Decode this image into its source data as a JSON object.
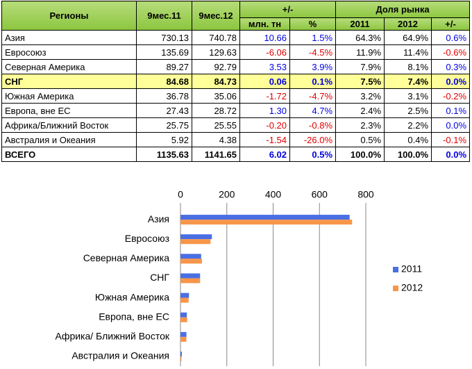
{
  "table": {
    "header_top": [
      "Регионы",
      "9мес.11",
      "9мес.12",
      "+/-",
      "Доля рынка"
    ],
    "header_sub": [
      "млн. тн",
      "%",
      "2011",
      "2012",
      "+/-"
    ],
    "rows": [
      [
        "Азия",
        "730.13",
        "740.78",
        "10.66",
        "1.5%",
        "64.3%",
        "64.9%",
        "0.6%"
      ],
      [
        "Евросоюз",
        "135.69",
        "129.63",
        "-6.06",
        "-4.5%",
        "11.9%",
        "11.4%",
        "-0.6%"
      ],
      [
        "Северная Америка",
        "89.27",
        "92.79",
        "3.53",
        "3.9%",
        "7.9%",
        "8.1%",
        "0.3%"
      ],
      [
        "СНГ",
        "84.68",
        "84.73",
        "0.06",
        "0.1%",
        "7.5%",
        "7.4%",
        "0.0%"
      ],
      [
        "Южная Америка",
        "36.78",
        "35.06",
        "-1.72",
        "-4.7%",
        "3.2%",
        "3.1%",
        "-0.2%"
      ],
      [
        "Европа, вне ЕС",
        "27.43",
        "28.72",
        "1.30",
        "4.7%",
        "2.4%",
        "2.5%",
        "0.1%"
      ],
      [
        "Африка/Ближний Восток",
        "25.75",
        "25.55",
        "-0.20",
        "-0.8%",
        "2.3%",
        "2.2%",
        "0.0%"
      ],
      [
        "Австралия и Океания",
        "5.92",
        "4.38",
        "-1.54",
        "-26.0%",
        "0.5%",
        "0.4%",
        "-0.1%"
      ],
      [
        "ВСЕГО",
        "1135.63",
        "1141.65",
        "6.02",
        "0.5%",
        "100.0%",
        "100.0%",
        "0.0%"
      ]
    ]
  },
  "chart_data": {
    "type": "hbar",
    "categories": [
      "Азия",
      "Евросоюз",
      "Северная Америка",
      "СНГ",
      "Южная Америка",
      "Европа, вне ЕС",
      "Африка/ Ближний Восток",
      "Австралия и Океания"
    ],
    "series": [
      {
        "name": "2011",
        "color": "#4a6fe3",
        "values": [
          730.13,
          135.69,
          89.27,
          84.68,
          36.78,
          27.43,
          25.75,
          5.92
        ]
      },
      {
        "name": "2012",
        "color": "#f7964a",
        "values": [
          740.78,
          129.63,
          92.79,
          84.73,
          35.06,
          28.72,
          25.55,
          4.38
        ]
      }
    ],
    "xlim": [
      0,
      800
    ],
    "xticks": [
      0,
      200,
      400,
      600,
      800
    ],
    "grid": true,
    "legend": "right"
  }
}
